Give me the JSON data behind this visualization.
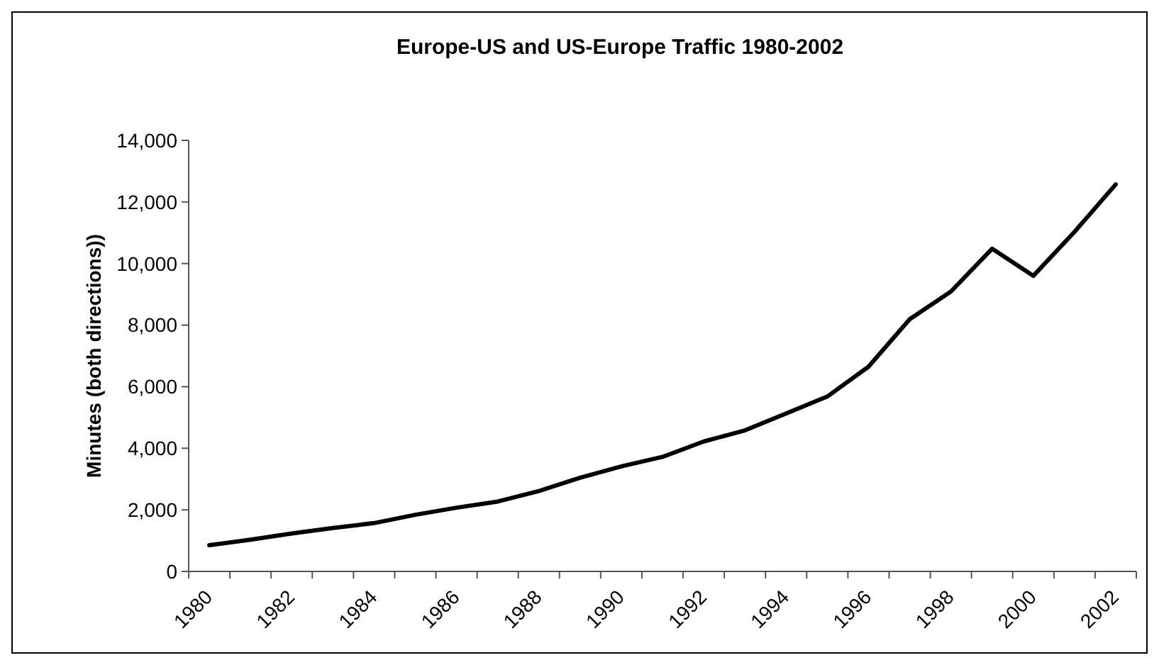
{
  "chart_data": {
    "type": "line",
    "title": "Europe-US and US-Europe Traffic 1980-2002",
    "ylabel": "Minutes (both directions))",
    "categories": [
      "1980",
      null,
      "1982",
      null,
      "1984",
      null,
      "1986",
      null,
      "1988",
      null,
      "1990",
      null,
      "1992",
      null,
      "1994",
      null,
      "1996",
      null,
      "1998",
      null,
      "2000",
      null,
      "2002"
    ],
    "series": [
      {
        "color": "#000000",
        "values": [
          850,
          1030,
          1230,
          1410,
          1570,
          1840,
          2070,
          2270,
          2610,
          3040,
          3410,
          3720,
          4220,
          4580,
          5130,
          5680,
          6650,
          8190,
          9090,
          10480,
          9600,
          11030,
          12570
        ]
      }
    ],
    "ylim": [
      0,
      14000
    ],
    "yticks": [
      {
        "value": 0,
        "label": "0"
      },
      {
        "value": 2000,
        "label": "2,000"
      },
      {
        "value": 4000,
        "label": "4,000"
      },
      {
        "value": 6000,
        "label": "6,000"
      },
      {
        "value": 8000,
        "label": "8,000"
      },
      {
        "value": 10000,
        "label": "10,000"
      },
      {
        "value": 12000,
        "label": "12,000"
      },
      {
        "value": 14000,
        "label": "14,000"
      }
    ],
    "grid": false,
    "marker": "none",
    "line_style": "solid"
  }
}
